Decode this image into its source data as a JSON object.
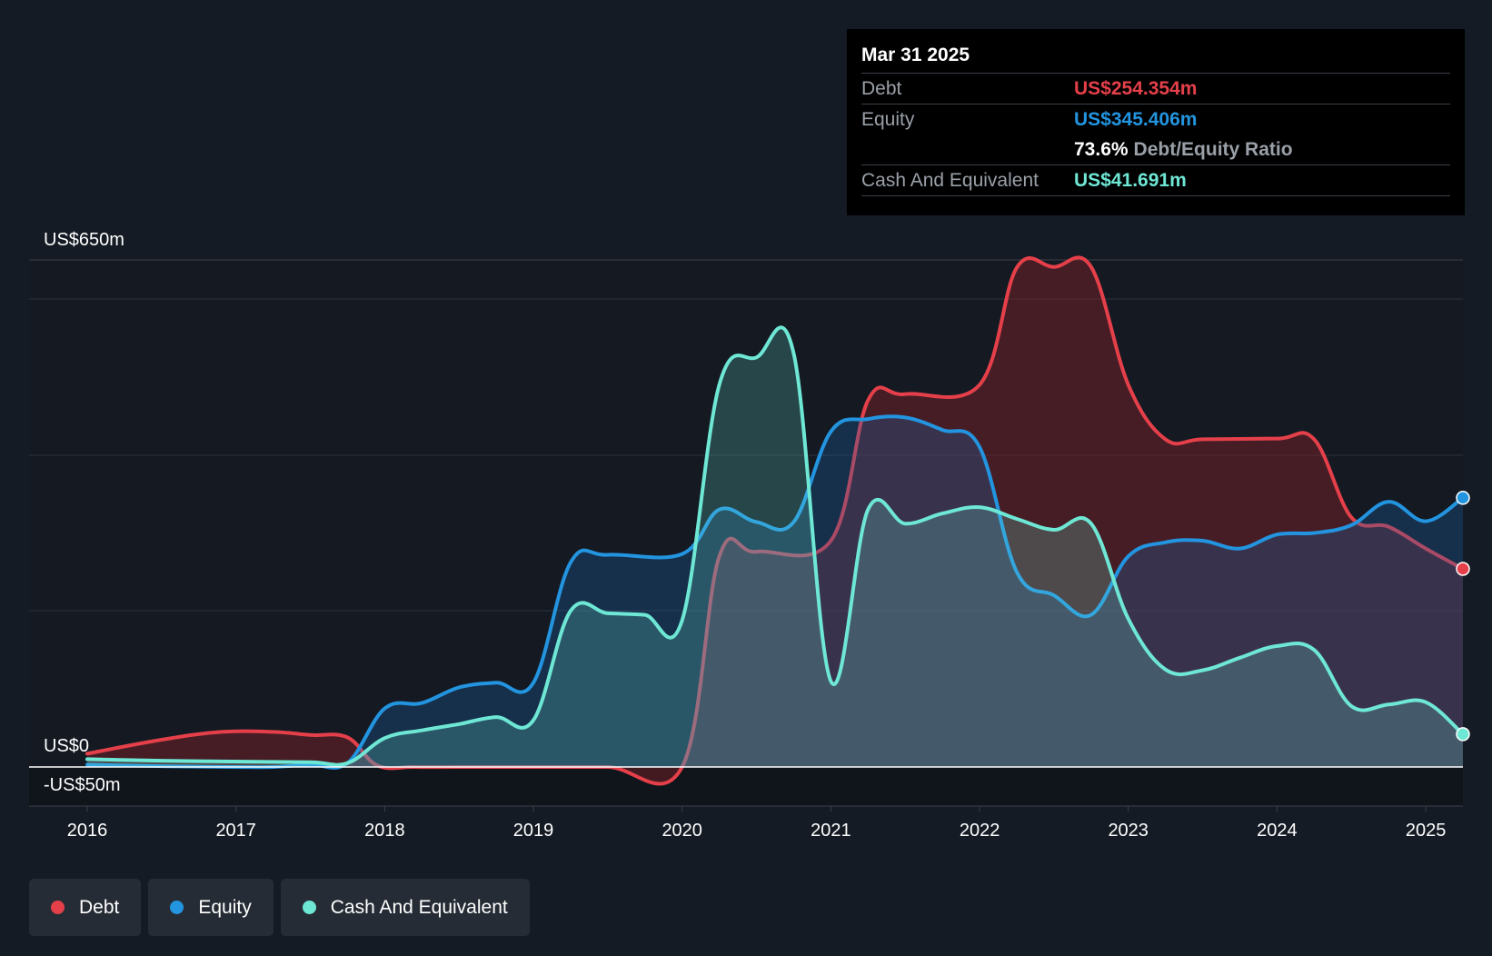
{
  "tooltip": {
    "date": "Mar 31 2025",
    "rows": {
      "debt": {
        "label": "Debt",
        "value": "US$254.354m"
      },
      "equity": {
        "label": "Equity",
        "value": "US$345.406m"
      },
      "ratio": {
        "value": "73.6%",
        "label": "Debt/Equity Ratio"
      },
      "cash": {
        "label": "Cash And Equivalent",
        "value": "US$41.691m"
      }
    }
  },
  "legend": [
    {
      "label": "Debt",
      "color": "#e5404a"
    },
    {
      "label": "Equity",
      "color": "#2394df"
    },
    {
      "label": "Cash And Equivalent",
      "color": "#6ee7d5"
    }
  ],
  "chart_data": {
    "type": "area",
    "ylim": [
      -50,
      650
    ],
    "y_tick_labels": {
      "top": "US$650m",
      "zero": "US$0",
      "bottom": "-US$50m"
    },
    "x_ticks": [
      2016,
      2017,
      2018,
      2019,
      2020,
      2021,
      2022,
      2023,
      2024,
      2025
    ],
    "x_range": [
      2016,
      2025.25
    ],
    "series": [
      {
        "name": "Debt",
        "color": "#e5404a",
        "fill": "rgba(140,36,42,0.42)",
        "points": [
          [
            2016,
            17
          ],
          [
            2016.5,
            35
          ],
          [
            2016.9,
            45
          ],
          [
            2017.25,
            45
          ],
          [
            2017.5,
            41
          ],
          [
            2017.75,
            38
          ],
          [
            2017.95,
            2
          ],
          [
            2018.2,
            0
          ],
          [
            2018.5,
            0
          ],
          [
            2019,
            0
          ],
          [
            2019.5,
            0
          ],
          [
            2020,
            0
          ],
          [
            2020.25,
            270
          ],
          [
            2020.5,
            276
          ],
          [
            2021.0,
            290
          ],
          [
            2021.25,
            470
          ],
          [
            2021.5,
            478
          ],
          [
            2022.0,
            490
          ],
          [
            2022.25,
            640
          ],
          [
            2022.5,
            641
          ],
          [
            2022.75,
            641
          ],
          [
            2023.0,
            490
          ],
          [
            2023.25,
            420
          ],
          [
            2023.5,
            420
          ],
          [
            2024.0,
            421
          ],
          [
            2024.25,
            420
          ],
          [
            2024.5,
            320
          ],
          [
            2024.75,
            308
          ],
          [
            2025.0,
            280
          ],
          [
            2025.25,
            254
          ]
        ]
      },
      {
        "name": "Equity",
        "color": "#2394df",
        "fill": "rgba(30,100,170,0.30)",
        "points": [
          [
            2016,
            3
          ],
          [
            2016.5,
            1
          ],
          [
            2017,
            0
          ],
          [
            2017.25,
            0
          ],
          [
            2017.5,
            3
          ],
          [
            2017.75,
            5
          ],
          [
            2018,
            75
          ],
          [
            2018.25,
            82
          ],
          [
            2018.5,
            102
          ],
          [
            2018.75,
            108
          ],
          [
            2019,
            108
          ],
          [
            2019.25,
            262
          ],
          [
            2019.5,
            272
          ],
          [
            2020,
            273
          ],
          [
            2020.25,
            330
          ],
          [
            2020.5,
            314
          ],
          [
            2020.75,
            314
          ],
          [
            2021.0,
            430
          ],
          [
            2021.25,
            446
          ],
          [
            2021.5,
            448
          ],
          [
            2021.75,
            432
          ],
          [
            2022.0,
            410
          ],
          [
            2022.25,
            250
          ],
          [
            2022.5,
            220
          ],
          [
            2022.75,
            195
          ],
          [
            2023.0,
            270
          ],
          [
            2023.25,
            288
          ],
          [
            2023.5,
            290
          ],
          [
            2023.75,
            280
          ],
          [
            2024.0,
            298
          ],
          [
            2024.25,
            300
          ],
          [
            2024.5,
            310
          ],
          [
            2024.75,
            340
          ],
          [
            2025.0,
            315
          ],
          [
            2025.25,
            345
          ]
        ]
      },
      {
        "name": "Cash And Equivalent",
        "color": "#6ee7d5",
        "fill": "rgba(110,231,213,0.22)",
        "points": [
          [
            2016,
            10
          ],
          [
            2016.5,
            8
          ],
          [
            2017,
            7
          ],
          [
            2017.5,
            6
          ],
          [
            2017.75,
            5
          ],
          [
            2018,
            37
          ],
          [
            2018.25,
            47
          ],
          [
            2018.5,
            55
          ],
          [
            2018.75,
            64
          ],
          [
            2019,
            60
          ],
          [
            2019.25,
            200
          ],
          [
            2019.5,
            197
          ],
          [
            2019.75,
            195
          ],
          [
            2020,
            188
          ],
          [
            2020.25,
            490
          ],
          [
            2020.5,
            525
          ],
          [
            2020.75,
            530
          ],
          [
            2021.0,
            110
          ],
          [
            2021.25,
            330
          ],
          [
            2021.5,
            312
          ],
          [
            2021.75,
            325
          ],
          [
            2022.0,
            333
          ],
          [
            2022.25,
            318
          ],
          [
            2022.5,
            304
          ],
          [
            2022.75,
            312
          ],
          [
            2023.0,
            190
          ],
          [
            2023.25,
            125
          ],
          [
            2023.5,
            124
          ],
          [
            2023.75,
            140
          ],
          [
            2024.0,
            155
          ],
          [
            2024.25,
            150
          ],
          [
            2024.5,
            78
          ],
          [
            2024.75,
            80
          ],
          [
            2025.0,
            83
          ],
          [
            2025.25,
            42
          ]
        ]
      }
    ]
  }
}
